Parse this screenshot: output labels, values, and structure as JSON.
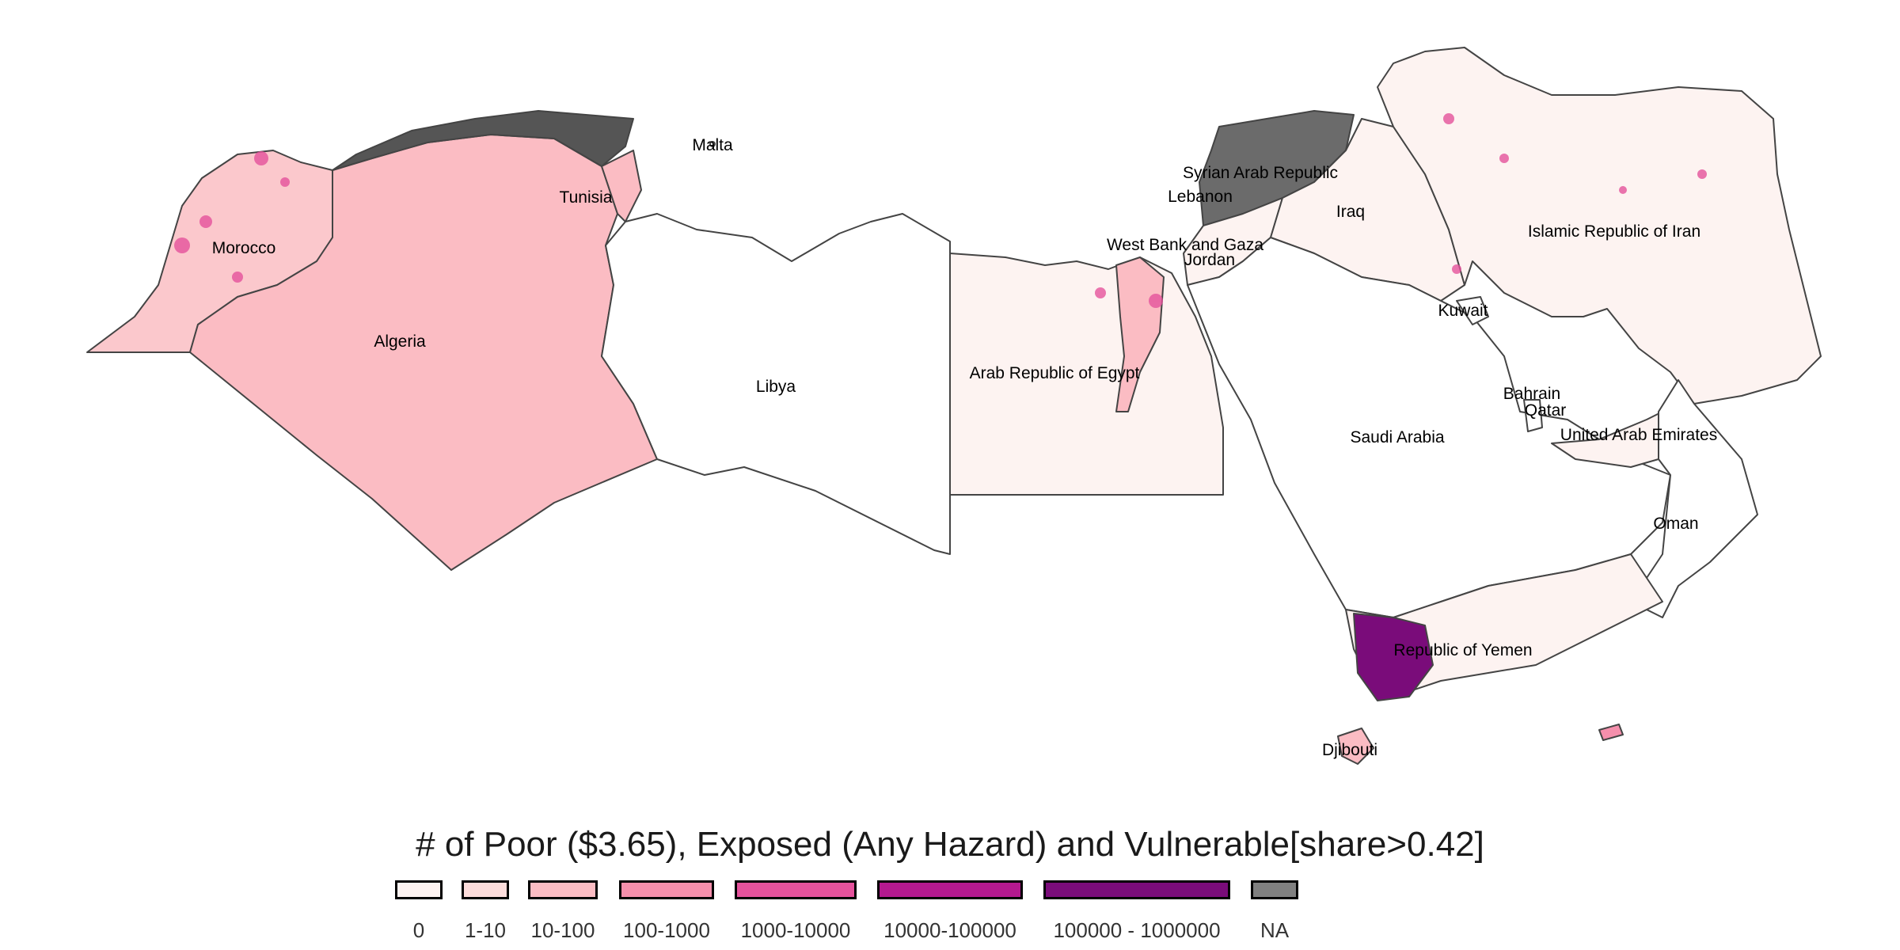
{
  "map": {
    "labels": {
      "morocco": "Morocco",
      "algeria": "Algeria",
      "tunisia": "Tunisia",
      "malta": "Malta",
      "libya": "Libya",
      "egypt": "Arab Republic of Egypt",
      "syria": "Syrian Arab Republic",
      "lebanon": "Lebanon",
      "iraq": "Iraq",
      "westbank": "West Bank and Gaza",
      "jordan": "Jordan",
      "iran": "Islamic Republic of Iran",
      "kuwait": "Kuwait",
      "bahrain": "Bahrain",
      "qatar": "Qatar",
      "uae": "United Arab Emirates",
      "saudi": "Saudi Arabia",
      "oman": "Oman",
      "yemen": "Republic of Yemen",
      "djibouti": "Djibouti"
    }
  },
  "legend": {
    "title": "# of Poor ($3.65), Exposed (Any Hazard) and Vulnerable[share>0.42]",
    "items": [
      {
        "label": "0",
        "color": "#fdf3f1"
      },
      {
        "label": "1-10",
        "color": "#fcdcdb"
      },
      {
        "label": "10-100",
        "color": "#fbbcc3"
      },
      {
        "label": "100-1000",
        "color": "#f58fac"
      },
      {
        "label": "1000-10000",
        "color": "#e5529c"
      },
      {
        "label": "10000-100000",
        "color": "#b4198f"
      },
      {
        "label": "100000 - 1000000",
        "color": "#7a0c7a"
      },
      {
        "label": "NA",
        "color": "#808080"
      }
    ]
  }
}
